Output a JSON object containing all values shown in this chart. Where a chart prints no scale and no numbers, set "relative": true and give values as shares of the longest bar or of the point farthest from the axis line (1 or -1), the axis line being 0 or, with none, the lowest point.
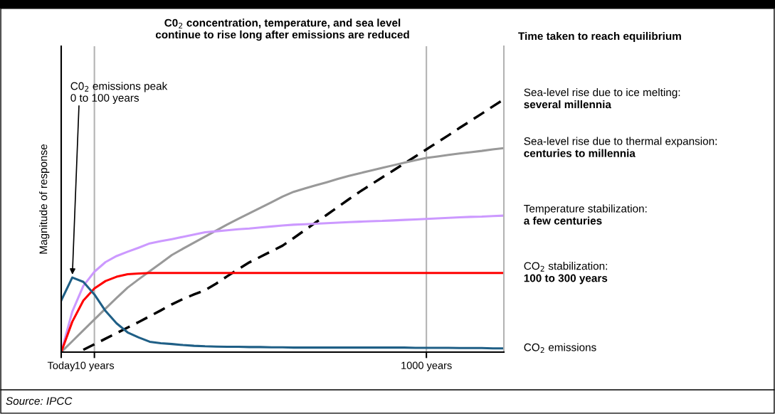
{
  "chart_data": {
    "type": "line",
    "title": "C0$_{2}$ concentration, temperature, and sea level\ncontinue to rise long after emissions are reduced",
    "ylabel": "Magnitude of response",
    "relative": true,
    "categories": [
      "Today",
      null,
      null,
      "10 years",
      null,
      null,
      null,
      null,
      null,
      null,
      null,
      null,
      null,
      null,
      null,
      null,
      null,
      null,
      null,
      null,
      null,
      null,
      null,
      null,
      null,
      null,
      null,
      null,
      null,
      null,
      null,
      null,
      null,
      "1000 years",
      null,
      null,
      null,
      null,
      null,
      null,
      null
    ],
    "grid": "x",
    "tick_labels": "x",
    "series": [
      {
        "name": "Sea-level rise due to ice melting:\nseveral millennia",
        "color": "#000000",
        "line_style": "dashed",
        "values": [
          null,
          null,
          0.009,
          0.031,
          0.053,
          0.075,
          0.097,
          0.119,
          0.142,
          0.165,
          0.189,
          0.21,
          0.228,
          0.245,
          0.271,
          0.3,
          0.328,
          0.355,
          0.377,
          0.399,
          0.421,
          0.451,
          0.482,
          0.513,
          0.543,
          0.574,
          0.605,
          0.635,
          0.663,
          0.691,
          0.718,
          0.746,
          0.774,
          0.802,
          0.83,
          0.858,
          0.887,
          0.915,
          0.943,
          0.972,
          1
        ]
      },
      {
        "name": "Sea-level rise due to thermal expansion:\ncenturies to millennia",
        "color": "#999999",
        "values": [
          0,
          0.043,
          0.086,
          0.129,
          0.172,
          0.214,
          0.255,
          0.288,
          0.32,
          0.352,
          0.384,
          0.409,
          0.433,
          0.457,
          0.481,
          0.505,
          0.527,
          0.549,
          0.571,
          0.593,
          0.615,
          0.634,
          0.647,
          0.66,
          0.672,
          0.685,
          0.697,
          0.708,
          0.718,
          0.729,
          0.739,
          0.749,
          0.759,
          0.768,
          0.774,
          0.78,
          0.786,
          0.791,
          0.796,
          0.802,
          0.807
        ]
      },
      {
        "name": "Temperature stabilization:\na few centuries",
        "color": "#cc99ff",
        "values": [
          0,
          0.16,
          0.262,
          0.318,
          0.356,
          0.38,
          0.397,
          0.413,
          0.43,
          0.439,
          0.447,
          0.456,
          0.465,
          0.474,
          0.478,
          0.482,
          0.486,
          0.489,
          0.493,
          0.497,
          0.501,
          0.504,
          0.506,
          0.508,
          0.51,
          0.512,
          0.514,
          0.516,
          0.518,
          0.519,
          0.521,
          0.523,
          0.525,
          0.527,
          0.529,
          0.531,
          0.533,
          0.535,
          0.536,
          0.538,
          0.54
        ]
      },
      {
        "name": "CO$_{2}$ stabilization:\n100 to 300 years",
        "color": "#ff0000",
        "values": [
          0,
          0.12,
          0.204,
          0.252,
          0.281,
          0.298,
          0.308,
          0.311,
          0.313,
          0.313,
          0.313,
          0.313,
          0.313,
          0.313,
          0.313,
          0.313,
          0.313,
          0.313,
          0.313,
          0.313,
          0.313,
          0.313,
          0.313,
          0.313,
          0.313,
          0.313,
          0.313,
          0.313,
          0.313,
          0.313,
          0.313,
          0.313,
          0.313,
          0.313,
          0.313,
          0.313,
          0.313,
          0.313,
          0.313,
          0.313,
          0.313
        ]
      },
      {
        "name": "CO$_{2}$ emissions",
        "color": "#1f5f86",
        "values": [
          0.204,
          0.295,
          0.278,
          0.228,
          0.163,
          0.114,
          0.078,
          0.058,
          0.041,
          0.035,
          0.032,
          0.028,
          0.025,
          0.023,
          0.022,
          0.021,
          0.021,
          0.02,
          0.02,
          0.019,
          0.019,
          0.018,
          0.018,
          0.018,
          0.018,
          0.018,
          0.018,
          0.018,
          0.018,
          0.018,
          0.018,
          0.018,
          0.017,
          0.017,
          0.017,
          0.017,
          0.016,
          0.016,
          0.016,
          0.015,
          0.015
        ]
      }
    ],
    "annotations": [
      "Time taken to reach equilibrium",
      "Source: IPCC",
      "C0$_{2}$ emissions peak\n0 to 100 years"
    ]
  }
}
